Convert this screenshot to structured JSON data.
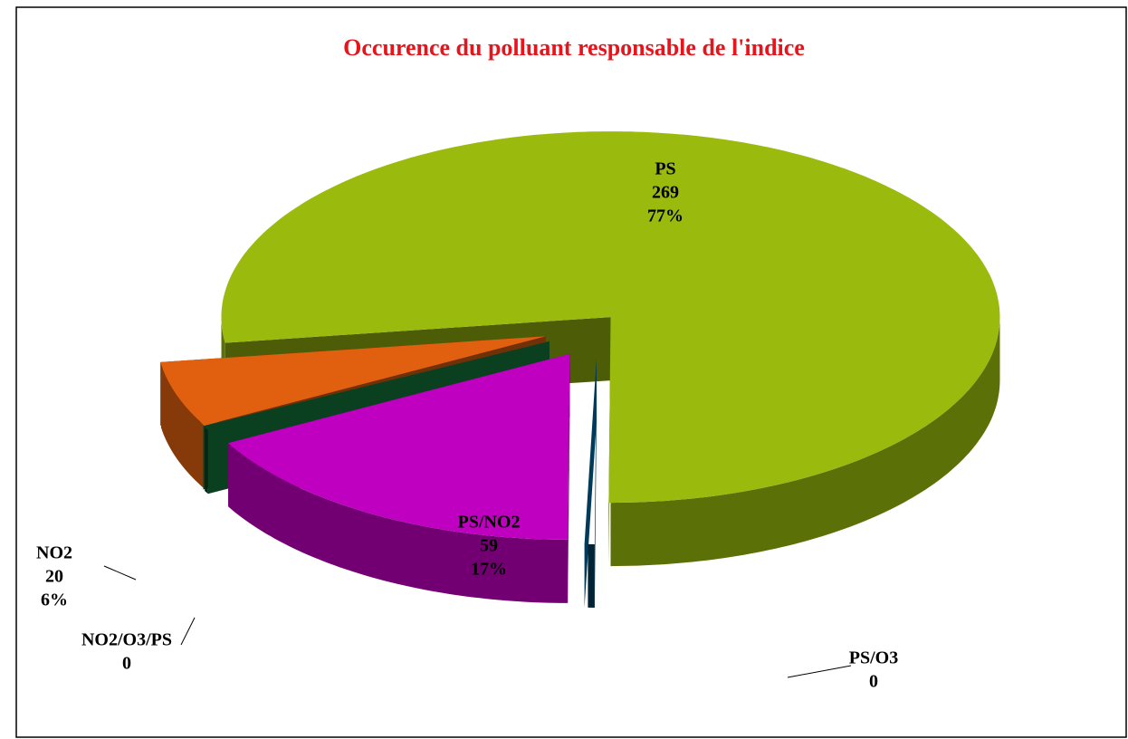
{
  "chart_data": {
    "type": "pie3d",
    "title": "Occurence du polluant responsable de l'indice",
    "categories": [
      "PS",
      "PS/O3",
      "PS/NO2",
      "NO2/O3/PS",
      "NO2"
    ],
    "values": [
      269,
      0,
      59,
      0,
      20
    ],
    "percent_labels": [
      "77%",
      null,
      "17%",
      null,
      "6%"
    ],
    "colors": [
      "#9aba0e",
      "#003a5a",
      "#c000c0",
      "#0a4020",
      "#e06010"
    ]
  }
}
